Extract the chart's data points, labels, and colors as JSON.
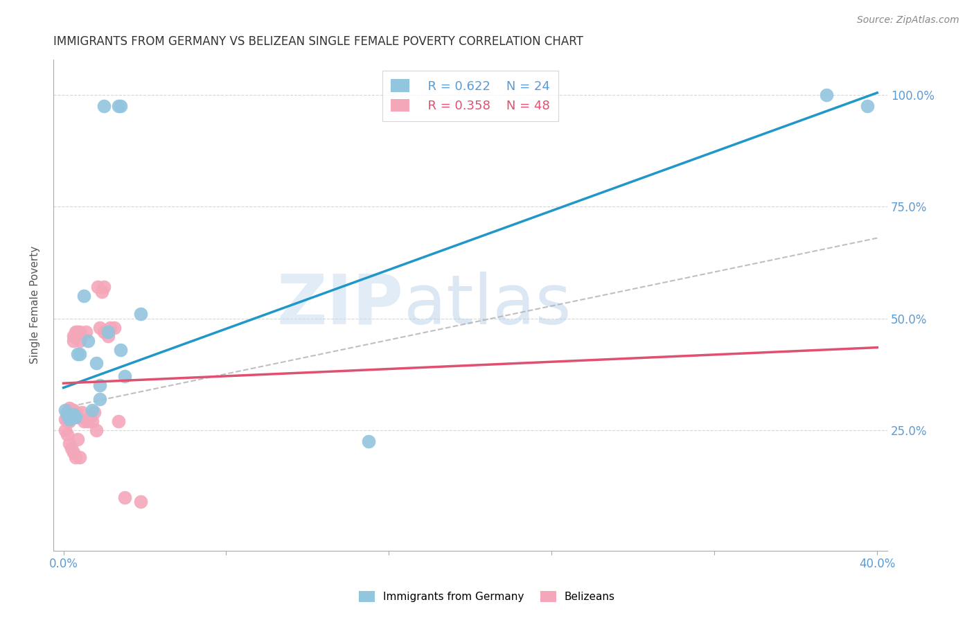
{
  "title": "IMMIGRANTS FROM GERMANY VS BELIZEAN SINGLE FEMALE POVERTY CORRELATION CHART",
  "source": "Source: ZipAtlas.com",
  "ylabel": "Single Female Poverty",
  "watermark_zip": "ZIP",
  "watermark_atlas": "atlas",
  "legend_r1": "R = 0.622",
  "legend_n1": "N = 24",
  "legend_r2": "R = 0.358",
  "legend_n2": "N = 48",
  "blue_color": "#92c5de",
  "pink_color": "#f4a7b9",
  "line_blue": "#2196c8",
  "line_pink": "#e05070",
  "line_gray": "#b0b0b0",
  "x_min": 0.0,
  "x_max": 0.4,
  "y_min": 0.0,
  "y_max": 1.05,
  "blue_x": [
    0.02,
    0.028,
    0.027,
    0.038,
    0.001,
    0.002,
    0.003,
    0.004,
    0.005,
    0.006,
    0.007,
    0.008,
    0.01,
    0.012,
    0.014,
    0.016,
    0.018,
    0.022,
    0.028,
    0.03,
    0.018,
    0.15,
    0.375,
    0.395
  ],
  "blue_y": [
    0.975,
    0.975,
    0.975,
    0.51,
    0.295,
    0.285,
    0.275,
    0.28,
    0.285,
    0.28,
    0.42,
    0.42,
    0.55,
    0.45,
    0.295,
    0.4,
    0.35,
    0.47,
    0.43,
    0.37,
    0.32,
    0.225,
    1.0,
    0.975
  ],
  "pink_x": [
    0.001,
    0.002,
    0.002,
    0.002,
    0.003,
    0.003,
    0.003,
    0.003,
    0.004,
    0.004,
    0.005,
    0.005,
    0.005,
    0.005,
    0.006,
    0.006,
    0.006,
    0.007,
    0.007,
    0.008,
    0.008,
    0.009,
    0.01,
    0.011,
    0.012,
    0.013,
    0.014,
    0.015,
    0.016,
    0.017,
    0.018,
    0.019,
    0.02,
    0.02,
    0.022,
    0.023,
    0.025,
    0.027,
    0.001,
    0.002,
    0.003,
    0.004,
    0.005,
    0.006,
    0.007,
    0.008,
    0.03,
    0.038
  ],
  "pink_y": [
    0.275,
    0.27,
    0.28,
    0.29,
    0.27,
    0.28,
    0.295,
    0.3,
    0.285,
    0.29,
    0.28,
    0.295,
    0.45,
    0.46,
    0.29,
    0.46,
    0.47,
    0.28,
    0.47,
    0.45,
    0.47,
    0.29,
    0.27,
    0.47,
    0.27,
    0.28,
    0.27,
    0.29,
    0.25,
    0.57,
    0.48,
    0.56,
    0.47,
    0.57,
    0.46,
    0.48,
    0.48,
    0.27,
    0.25,
    0.24,
    0.22,
    0.21,
    0.2,
    0.19,
    0.23,
    0.19,
    0.1,
    0.09
  ],
  "grid_color": "#cccccc",
  "bg_color": "#ffffff",
  "title_color": "#333333",
  "tick_color": "#5b9bd5",
  "ylabel_color": "#555555"
}
